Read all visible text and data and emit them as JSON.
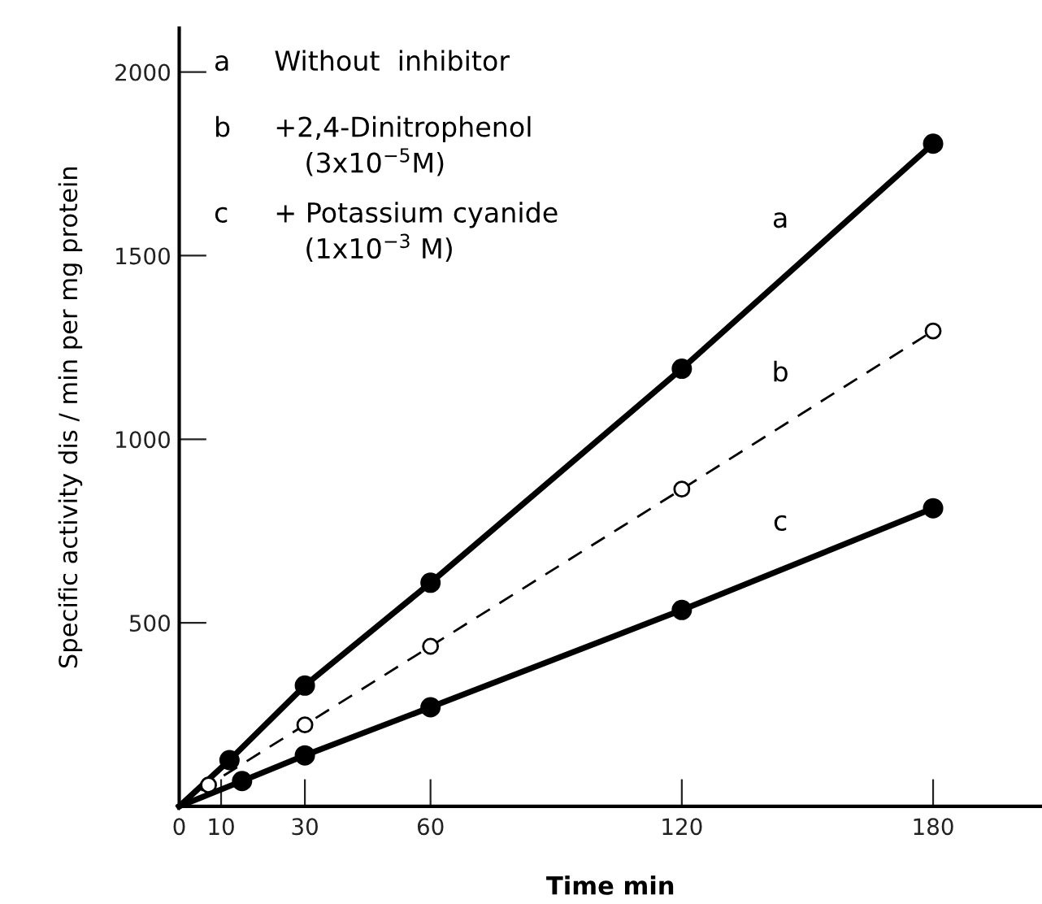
{
  "chart_data": {
    "type": "line",
    "xlabel": "Time min",
    "ylabel": "Specific activity dis / min per mg protein",
    "xlim": [
      0,
      206
    ],
    "ylim": [
      0,
      2120
    ],
    "xticks": [
      0,
      10,
      30,
      60,
      120,
      180
    ],
    "yticks": [
      500,
      1000,
      1500,
      2000
    ],
    "grid": false,
    "legend": false,
    "series": [
      {
        "name": "a",
        "x": [
          0,
          12,
          30,
          60,
          120,
          180
        ],
        "values": [
          0,
          126,
          329,
          609,
          1192,
          1805
        ],
        "color": "#000000",
        "line_style": "solid",
        "marker": "circle"
      },
      {
        "name": "b",
        "x": [
          0,
          7,
          30,
          60,
          120,
          180
        ],
        "values": [
          0,
          58,
          222,
          436,
          864,
          1295
        ],
        "color": "#000000",
        "line_style": "dashed",
        "marker": "circle"
      },
      {
        "name": "c",
        "x": [
          0,
          15,
          30,
          60,
          120,
          180
        ],
        "values": [
          0,
          69,
          139,
          270,
          535,
          812
        ],
        "color": "#000000",
        "line_style": "solid",
        "marker": "circle"
      }
    ],
    "annotations": [
      "a",
      "Without  inhibitor",
      "b",
      "+2,4-Dinitrophenol",
      "(3x10$^{−5}$M)",
      "c",
      "+ Potassium cyanide",
      "(1x10$^{−3}$ M)"
    ]
  }
}
